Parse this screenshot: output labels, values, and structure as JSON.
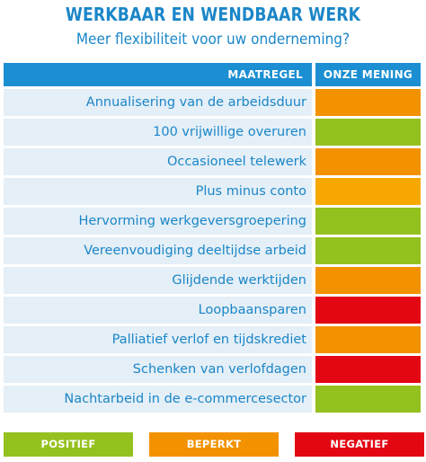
{
  "title": "WERKBAAR EN WENDBAAR WERK",
  "subtitle": "Meer flexibiliteit voor uw onderneming?",
  "table": {
    "header_measure": "MAATREGEL",
    "header_opinion": "ONZE MENING",
    "rows": [
      {
        "label": "Annualisering van de arbeidsduur",
        "opinion": "beperkt",
        "color": "#f39200"
      },
      {
        "label": "100 vrijwillige overuren",
        "opinion": "positief",
        "color": "#95c11f"
      },
      {
        "label": "Occasioneel telewerk",
        "opinion": "beperkt",
        "color": "#f39200"
      },
      {
        "label": "Plus minus conto",
        "opinion": "beperkt",
        "color": "#f6a800"
      },
      {
        "label": "Hervorming werkgeversgroepering",
        "opinion": "positief",
        "color": "#95c11f"
      },
      {
        "label": "Vereenvoudiging deeltijdse arbeid",
        "opinion": "positief",
        "color": "#95c11f"
      },
      {
        "label": "Glijdende werktijden",
        "opinion": "beperkt",
        "color": "#f39200"
      },
      {
        "label": "Loopbaansparen",
        "opinion": "negatief",
        "color": "#e30613"
      },
      {
        "label": "Palliatief verlof en tijdskrediet",
        "opinion": "beperkt",
        "color": "#f39200"
      },
      {
        "label": "Schenken van verlofdagen",
        "opinion": "negatief",
        "color": "#e30613"
      },
      {
        "label": "Nachtarbeid in de e-commercesector",
        "opinion": "positief",
        "color": "#95c11f"
      }
    ]
  },
  "legend": {
    "positief": {
      "label": "POSITIEF",
      "color": "#95c11f"
    },
    "beperkt": {
      "label": "BEPERKT",
      "color": "#f39200"
    },
    "negatief": {
      "label": "NEGATIEF",
      "color": "#e30613"
    }
  }
}
